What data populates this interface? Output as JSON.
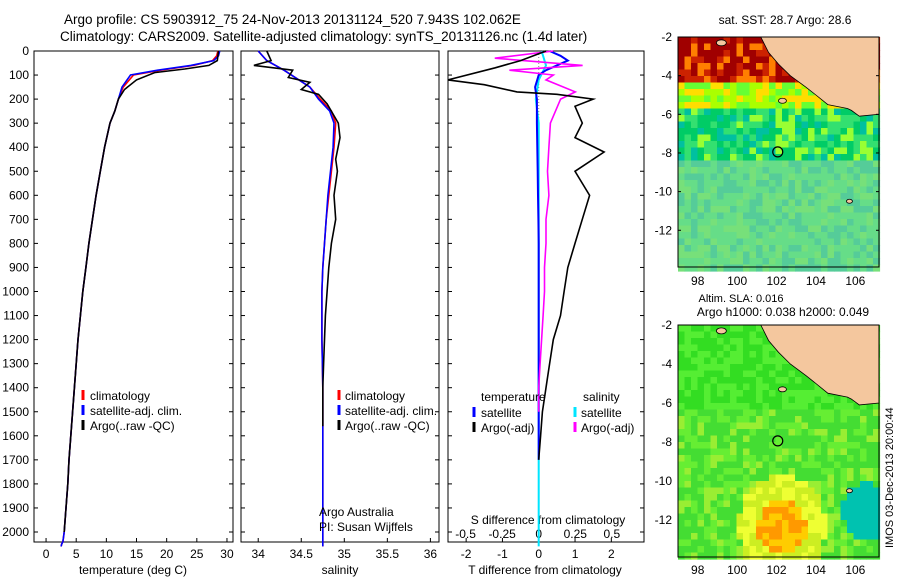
{
  "header": {
    "line1": "Argo profile: CS 5903912_75 24-Nov-2013 20131124_520 7.943S 102.062E",
    "line2": "Climatology: CARS2009. Satellite-adjusted climatology: synTS_20131126.nc (1.4d later)"
  },
  "colors": {
    "climatology": "#ff0000",
    "satellite": "#0000ff",
    "argo": "#000000",
    "salinity_satellite": "#00e5ff",
    "salinity_argo": "#ff00ff"
  },
  "depth_ticks": [
    "0",
    "100",
    "200",
    "300",
    "400",
    "500",
    "600",
    "700",
    "800",
    "900",
    "1000",
    "1100",
    "1200",
    "1300",
    "1400",
    "1500",
    "1600",
    "1700",
    "1800",
    "1900",
    "2000"
  ],
  "panels": {
    "temperature": {
      "xlabel": "temperature (deg C)",
      "xticks": [
        "0",
        "5",
        "10",
        "15",
        "20",
        "25",
        "30"
      ],
      "legend": [
        "climatology",
        "satellite-adj. clim.",
        "Argo(..raw -QC)"
      ]
    },
    "salinity": {
      "xlabel": "salinity",
      "xticks": [
        "34",
        "34.5",
        "35",
        "35.5",
        "36"
      ],
      "legend": [
        "climatology",
        "satellite-adj. clim.",
        "Argo(..raw -QC)"
      ],
      "credit1": "Argo Australia",
      "credit2": "PI: Susan Wijffels"
    },
    "difference": {
      "xlabel": "T difference from climatology",
      "top_label": "S difference from climatology",
      "s_ticks": [
        "-0.5",
        "-0.25",
        "0",
        "0.25",
        "0.5"
      ],
      "t_ticks": [
        "-2",
        "-1",
        "0",
        "1",
        "2"
      ],
      "legend_temperature_head": "temperature",
      "legend_salinity_head": "salinity",
      "legend_satellite": "satellite",
      "legend_argo": "Argo(-adj)"
    }
  },
  "maps": {
    "sst": {
      "title": "sat. SST: 28.7  Argo: 28.6",
      "yticks": [
        "-2",
        "-4",
        "-6",
        "-8",
        "-10",
        "-12"
      ],
      "xticks": [
        "98",
        "100",
        "102",
        "104",
        "106"
      ]
    },
    "sla": {
      "title1": "Altim. SLA: 0.016",
      "title2": "Argo h1000: 0.038 h2000: 0.049",
      "yticks": [
        "-2",
        "-4",
        "-6",
        "-8",
        "-10",
        "-12"
      ],
      "xticks": [
        "98",
        "100",
        "102",
        "104",
        "106"
      ]
    },
    "stamp": "IMOS 03-Dec-2013 20:00:44"
  },
  "chart_data": [
    {
      "type": "line",
      "title": "",
      "xlabel": "temperature (deg C)",
      "ylabel": "",
      "xlim": [
        -2,
        31
      ],
      "ylim": [
        2060,
        0
      ],
      "series": [
        {
          "name": "climatology",
          "x": [
            28.5,
            28.3,
            27.6,
            24.5,
            19.0,
            14.5,
            12.8,
            12.0,
            11.4,
            10.6,
            9.7,
            9.0,
            8.3,
            7.7,
            7.1,
            6.6,
            6.1,
            5.7,
            5.3,
            5.0,
            4.7,
            4.4,
            4.1,
            3.8,
            3.6,
            3.3,
            3.0,
            2.8,
            2.6,
            2.5
          ],
          "y": [
            0,
            20,
            40,
            60,
            80,
            100,
            150,
            200,
            250,
            300,
            400,
            500,
            600,
            700,
            800,
            900,
            1000,
            1100,
            1200,
            1300,
            1400,
            1500,
            1600,
            1700,
            1800,
            1900,
            2000,
            2040,
            2050,
            2060
          ]
        },
        {
          "name": "satellite-adj. clim.",
          "x": [
            28.8,
            28.6,
            27.8,
            24.0,
            18.5,
            14.0,
            12.6,
            12.0,
            11.4,
            10.6,
            9.7,
            9.0,
            8.3,
            7.7,
            7.1,
            6.6,
            6.1,
            5.7,
            5.3,
            5.0,
            4.7,
            4.4,
            4.1,
            3.8,
            3.6,
            3.3,
            3.0,
            2.8,
            2.6,
            2.5
          ],
          "y": [
            0,
            20,
            40,
            60,
            80,
            100,
            150,
            200,
            250,
            300,
            400,
            500,
            600,
            700,
            800,
            900,
            1000,
            1100,
            1200,
            1300,
            1400,
            1500,
            1600,
            1700,
            1800,
            1900,
            2000,
            2040,
            2050,
            2060
          ]
        },
        {
          "name": "Argo(..raw -QC)",
          "x": [
            28.6,
            28.5,
            28.4,
            27.0,
            23.0,
            18.0,
            15.0,
            13.0,
            12.0,
            11.4,
            10.6,
            9.7,
            9.0,
            8.3,
            7.7,
            7.1,
            6.6,
            6.1,
            5.7,
            5.3,
            5.0,
            4.7,
            4.4,
            4.1,
            3.8,
            3.6,
            3.3,
            3.0
          ],
          "y": [
            0,
            20,
            40,
            60,
            75,
            90,
            120,
            160,
            200,
            250,
            300,
            400,
            500,
            600,
            700,
            800,
            900,
            1000,
            1100,
            1200,
            1300,
            1400,
            1500,
            1600,
            1700,
            1800,
            1900,
            2000
          ]
        }
      ]
    },
    {
      "type": "line",
      "title": "",
      "xlabel": "salinity",
      "ylabel": "",
      "xlim": [
        33.8,
        36.1
      ],
      "ylim": [
        2060,
        0
      ],
      "series": [
        {
          "name": "climatology",
          "x": [
            34.0,
            34.1,
            34.3,
            34.6,
            34.72,
            34.85,
            34.9,
            34.88,
            34.85,
            34.82,
            34.79,
            34.77,
            34.75,
            34.74,
            34.74,
            34.74,
            34.745,
            34.75,
            34.75,
            34.75,
            34.75,
            34.75,
            34.75
          ],
          "y": [
            0,
            40,
            80,
            150,
            200,
            250,
            300,
            400,
            500,
            600,
            700,
            800,
            900,
            1000,
            1100,
            1200,
            1300,
            1400,
            1500,
            1600,
            1800,
            2000,
            2060
          ]
        },
        {
          "name": "satellite-adj. clim.",
          "x": [
            34.0,
            34.1,
            34.3,
            34.6,
            34.7,
            34.83,
            34.88,
            34.87,
            34.84,
            34.81,
            34.79,
            34.77,
            34.75,
            34.74,
            34.74,
            34.74,
            34.745,
            34.75,
            34.75,
            34.75,
            34.75,
            34.75,
            34.75
          ],
          "y": [
            0,
            40,
            80,
            150,
            200,
            250,
            300,
            400,
            500,
            600,
            700,
            800,
            900,
            1000,
            1100,
            1200,
            1300,
            1400,
            1500,
            1600,
            1800,
            2000,
            2060
          ]
        },
        {
          "name": "Argo(..raw -QC)",
          "x": [
            34.1,
            34.15,
            33.95,
            34.4,
            34.35,
            34.6,
            34.5,
            34.7,
            34.8,
            34.93,
            34.95,
            34.9,
            34.92,
            34.88,
            34.9,
            34.85,
            34.82,
            34.8,
            34.78,
            34.77,
            34.76,
            34.75,
            34.75,
            34.75
          ],
          "y": [
            0,
            40,
            60,
            80,
            110,
            130,
            160,
            180,
            220,
            300,
            360,
            450,
            500,
            600,
            700,
            800,
            900,
            1000,
            1100,
            1200,
            1300,
            1400,
            1500,
            1560
          ]
        }
      ]
    },
    {
      "type": "line",
      "title": "",
      "xlabel": "T difference from climatology",
      "ylabel": "",
      "xlim": [
        -2.5,
        2.9
      ],
      "ylim": [
        2060,
        0
      ],
      "series": [
        {
          "name": "satellite",
          "x": [
            0.3,
            0.6,
            0.8,
            0.5,
            0.2,
            0.0,
            -0.1,
            -0.05,
            -0.05,
            -0.04,
            -0.03,
            -0.02,
            -0.01,
            0.0,
            0.0,
            0.0,
            0.0,
            0.0,
            0.0,
            0.0,
            0.0
          ],
          "y": [
            0,
            20,
            40,
            60,
            80,
            100,
            150,
            200,
            300,
            400,
            500,
            600,
            700,
            800,
            900,
            1000,
            1100,
            1200,
            1300,
            1400,
            1700
          ]
        },
        {
          "name": "Argo(-adj)",
          "x": [
            0.2,
            -0.5,
            -1.2,
            -2.5,
            -1.5,
            -0.6,
            0.5,
            1.5,
            1.0,
            1.2,
            1.0,
            1.8,
            1.0,
            1.4,
            1.2,
            1.0,
            0.8,
            0.7,
            0.6,
            0.4,
            0.3,
            0.2,
            0.1,
            0.05,
            0.0,
            0.0
          ],
          "y": [
            0,
            40,
            70,
            120,
            140,
            170,
            180,
            200,
            230,
            300,
            360,
            420,
            500,
            600,
            700,
            800,
            900,
            1000,
            1100,
            1200,
            1300,
            1400,
            1500,
            1600,
            1700,
            1700
          ]
        }
      ]
    },
    {
      "type": "line",
      "title": "",
      "xlabel": "S difference from climatology",
      "ylabel": "",
      "xlim": [
        -0.62,
        0.72
      ],
      "ylim": [
        2060,
        0
      ],
      "series": [
        {
          "name": "satellite",
          "x": [
            0.02,
            0.05,
            0.0,
            -0.02,
            0.0,
            0.0,
            0.0,
            0.0,
            0.0,
            0.0,
            0.0,
            0.0,
            0.0,
            0.0,
            0.0,
            0.0,
            0.0,
            0.0,
            0.0
          ],
          "y": [
            0,
            60,
            120,
            200,
            300,
            400,
            500,
            600,
            700,
            800,
            900,
            1000,
            1100,
            1200,
            1300,
            1400,
            1600,
            1800,
            2060
          ]
        },
        {
          "name": "Argo(-adj)",
          "x": [
            0.1,
            -0.3,
            0.3,
            -0.2,
            0.1,
            0.05,
            0.25,
            0.15,
            0.08,
            0.07,
            0.06,
            0.07,
            0.05,
            0.05,
            0.04,
            0.04,
            0.03,
            0.02,
            0.01,
            0.0,
            0.0
          ],
          "y": [
            0,
            30,
            60,
            80,
            100,
            120,
            170,
            200,
            300,
            400,
            500,
            600,
            700,
            800,
            900,
            1000,
            1100,
            1200,
            1300,
            1400,
            1500
          ]
        }
      ]
    }
  ]
}
